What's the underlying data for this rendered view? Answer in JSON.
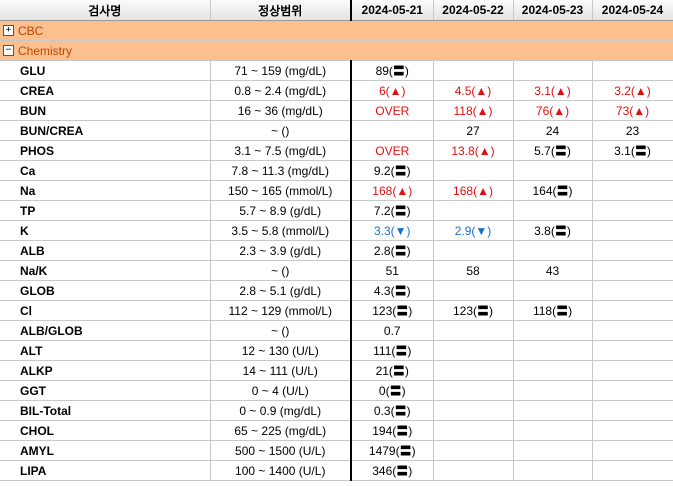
{
  "header": {
    "name": "검사명",
    "range": "정상범위",
    "dates": [
      "2024-05-21",
      "2024-05-22",
      "2024-05-23",
      "2024-05-24"
    ]
  },
  "groups": [
    {
      "label": "CBC",
      "toggle": "+"
    },
    {
      "label": "Chemistry",
      "toggle": "−"
    }
  ],
  "rows": [
    {
      "name": "GLU",
      "range": "71 ~ 159 (mg/dL)",
      "v": [
        "89(〓)",
        "",
        "",
        ""
      ],
      "c": [
        "",
        "",
        "",
        ""
      ]
    },
    {
      "name": "CREA",
      "range": "0.8 ~ 2.4 (mg/dL)",
      "v": [
        "6(▲)",
        "4.5(▲)",
        "3.1(▲)",
        "3.2(▲)"
      ],
      "c": [
        "high",
        "high",
        "high",
        "high"
      ]
    },
    {
      "name": "BUN",
      "range": "16 ~ 36 (mg/dL)",
      "v": [
        "OVER",
        "118(▲)",
        "76(▲)",
        "73(▲)"
      ],
      "c": [
        "high",
        "high",
        "high",
        "high"
      ]
    },
    {
      "name": "BUN/CREA",
      "range": "~ ()",
      "v": [
        "",
        "27",
        "24",
        "23"
      ],
      "c": [
        "",
        "",
        "",
        ""
      ]
    },
    {
      "name": "PHOS",
      "range": "3.1 ~ 7.5 (mg/dL)",
      "v": [
        "OVER",
        "13.8(▲)",
        "5.7(〓)",
        "3.1(〓)"
      ],
      "c": [
        "high",
        "high",
        "",
        ""
      ]
    },
    {
      "name": "Ca",
      "range": "7.8 ~ 11.3 (mg/dL)",
      "v": [
        "9.2(〓)",
        "",
        "",
        ""
      ],
      "c": [
        "",
        "",
        "",
        ""
      ]
    },
    {
      "name": "Na",
      "range": "150 ~ 165 (mmol/L)",
      "v": [
        "168(▲)",
        "168(▲)",
        "164(〓)",
        ""
      ],
      "c": [
        "high",
        "high",
        "",
        ""
      ]
    },
    {
      "name": "TP",
      "range": "5.7 ~ 8.9 (g/dL)",
      "v": [
        "7.2(〓)",
        "",
        "",
        ""
      ],
      "c": [
        "",
        "",
        "",
        ""
      ]
    },
    {
      "name": "K",
      "range": "3.5 ~ 5.8 (mmol/L)",
      "v": [
        "3.3(▼)",
        "2.9(▼)",
        "3.8(〓)",
        ""
      ],
      "c": [
        "low",
        "low",
        "",
        ""
      ]
    },
    {
      "name": "ALB",
      "range": "2.3 ~ 3.9 (g/dL)",
      "v": [
        "2.8(〓)",
        "",
        "",
        ""
      ],
      "c": [
        "",
        "",
        "",
        ""
      ]
    },
    {
      "name": "Na/K",
      "range": "~ ()",
      "v": [
        "51",
        "58",
        "43",
        ""
      ],
      "c": [
        "",
        "",
        "",
        ""
      ]
    },
    {
      "name": "GLOB",
      "range": "2.8 ~ 5.1 (g/dL)",
      "v": [
        "4.3(〓)",
        "",
        "",
        ""
      ],
      "c": [
        "",
        "",
        "",
        ""
      ]
    },
    {
      "name": "Cl",
      "range": "112 ~ 129 (mmol/L)",
      "v": [
        "123(〓)",
        "123(〓)",
        "118(〓)",
        ""
      ],
      "c": [
        "",
        "",
        "",
        ""
      ]
    },
    {
      "name": "ALB/GLOB",
      "range": "~ ()",
      "v": [
        "0.7",
        "",
        "",
        ""
      ],
      "c": [
        "",
        "",
        "",
        ""
      ]
    },
    {
      "name": "ALT",
      "range": "12 ~ 130 (U/L)",
      "v": [
        "111(〓)",
        "",
        "",
        ""
      ],
      "c": [
        "",
        "",
        "",
        ""
      ]
    },
    {
      "name": "ALKP",
      "range": "14 ~ 111 (U/L)",
      "v": [
        "21(〓)",
        "",
        "",
        ""
      ],
      "c": [
        "",
        "",
        "",
        ""
      ]
    },
    {
      "name": "GGT",
      "range": "0 ~ 4 (U/L)",
      "v": [
        "0(〓)",
        "",
        "",
        ""
      ],
      "c": [
        "",
        "",
        "",
        ""
      ]
    },
    {
      "name": "BIL-Total",
      "range": "0 ~ 0.9 (mg/dL)",
      "v": [
        "0.3(〓)",
        "",
        "",
        ""
      ],
      "c": [
        "",
        "",
        "",
        ""
      ]
    },
    {
      "name": "CHOL",
      "range": "65 ~ 225 (mg/dL)",
      "v": [
        "194(〓)",
        "",
        "",
        ""
      ],
      "c": [
        "",
        "",
        "",
        ""
      ]
    },
    {
      "name": "AMYL",
      "range": "500 ~ 1500 (U/L)",
      "v": [
        "1479(〓)",
        "",
        "",
        ""
      ],
      "c": [
        "",
        "",
        "",
        ""
      ]
    },
    {
      "name": "LIPA",
      "range": "100 ~ 1400 (U/L)",
      "v": [
        "346(〓)",
        "",
        "",
        ""
      ],
      "c": [
        "",
        "",
        "",
        ""
      ]
    }
  ],
  "colors": {
    "group_bg": "#fbc08e",
    "group_text": "#c04400",
    "high": "#e01010",
    "low": "#1a6fd0"
  }
}
